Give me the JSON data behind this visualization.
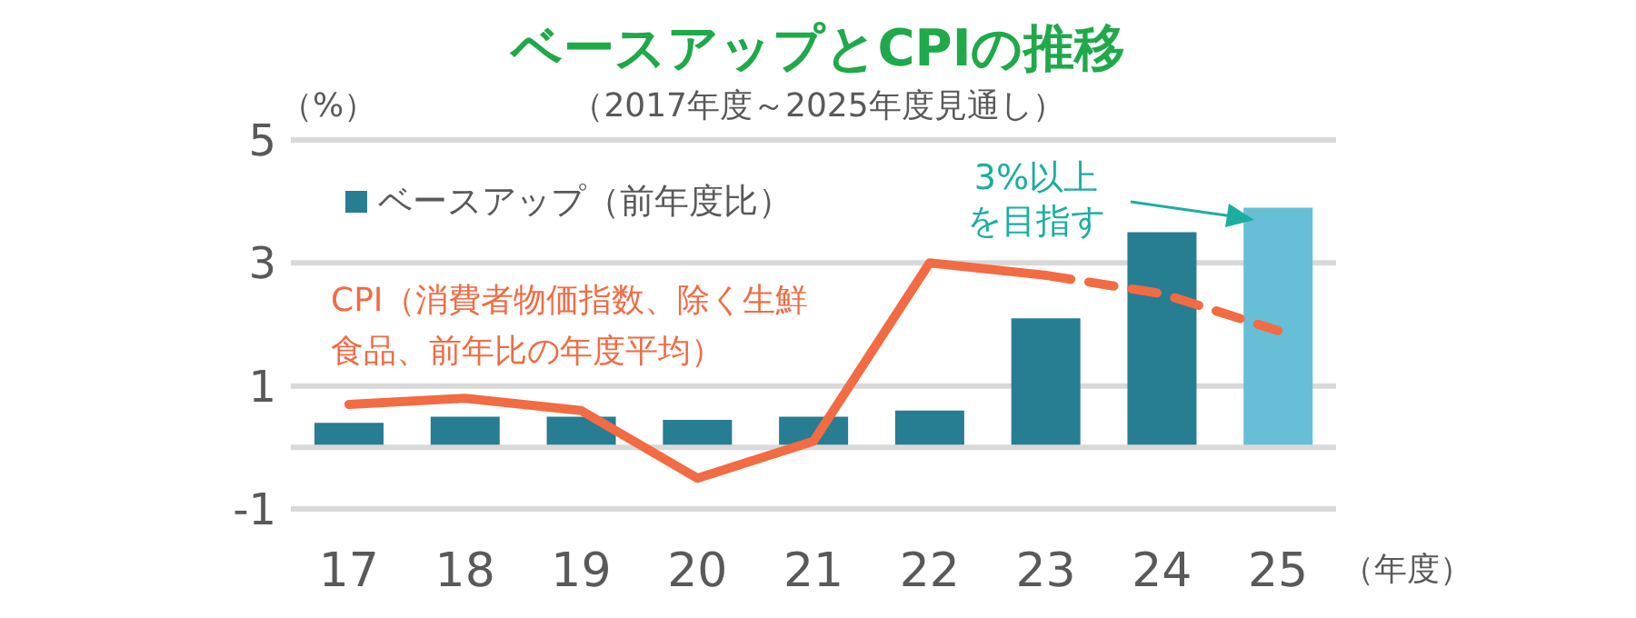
{
  "chart_data": {
    "type": "bar",
    "title": "ベースアップとCPIの推移",
    "subtitle": "（2017年度～2025年度見通し）",
    "ylabel": "（%）",
    "xlabel": "（年度）",
    "categories": [
      "17",
      "18",
      "19",
      "20",
      "21",
      "22",
      "23",
      "24",
      "25"
    ],
    "series": [
      {
        "name": "ベースアップ（前年度比）",
        "color": "#277d92",
        "colors": [
          "#277d92",
          "#277d92",
          "#277d92",
          "#277d92",
          "#277d92",
          "#277d92",
          "#277d92",
          "#277d92",
          "#66bfd6"
        ],
        "values": [
          0.4,
          0.5,
          0.5,
          0.45,
          0.5,
          0.6,
          2.1,
          3.5,
          3.9
        ]
      },
      {
        "type": "line",
        "name": "CPI（消費者物価指数、除く生鮮食品、前年比の年度平均）",
        "color": "#f26b43",
        "line_style": "solid",
        "values": [
          0.7,
          0.8,
          0.6,
          -0.5,
          0.1,
          3.0,
          2.8,
          null,
          null
        ]
      },
      {
        "type": "line",
        "color": "#f26b43",
        "line_style": "dashed",
        "values": [
          null,
          null,
          null,
          null,
          null,
          null,
          2.8,
          2.5,
          1.9
        ]
      }
    ],
    "annotations": [
      "3%以上を目指す"
    ],
    "ylim": [
      -1,
      5
    ],
    "yticks": [
      -1,
      1,
      3,
      5
    ],
    "grid": "y",
    "legend": "top left",
    "marker": "none"
  }
}
